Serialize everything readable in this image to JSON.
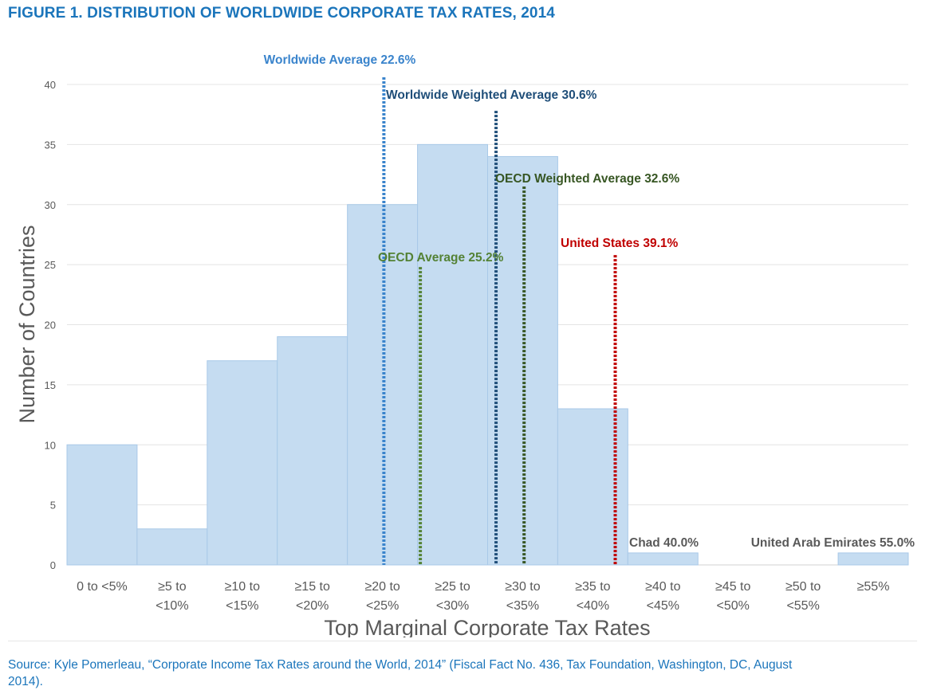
{
  "page": {
    "title": "FIGURE 1. DISTRIBUTION OF WORLDWIDE CORPORATE TAX RATES, 2014",
    "source": "Source: Kyle Pomerleau, “Corporate Income Tax Rates around the World, 2014” (Fiscal Fact No. 436, Tax Foundation, Washington, DC, August 2014)."
  },
  "chart_data": {
    "type": "bar",
    "xlabel": "Top Marginal Corporate Tax Rates",
    "ylabel": "Number of Countries",
    "ylim": [
      0,
      40
    ],
    "yticks": [
      0,
      5,
      10,
      15,
      20,
      25,
      30,
      35,
      40
    ],
    "grid": true,
    "categories": [
      [
        "0 to <5%"
      ],
      [
        "≥5 to",
        "<10%"
      ],
      [
        "≥10 to",
        "<15%"
      ],
      [
        "≥15 to",
        "<20%"
      ],
      [
        "≥20 to",
        "<25%"
      ],
      [
        "≥25 to",
        "<30%"
      ],
      [
        "≥30 to",
        "<35%"
      ],
      [
        "≥35 to",
        "<40%"
      ],
      [
        "≥40 to",
        "<45%"
      ],
      [
        "≥45 to",
        "<50%"
      ],
      [
        "≥50 to",
        "<55%"
      ],
      [
        "≥55%"
      ]
    ],
    "values": [
      10,
      3,
      17,
      19,
      30,
      35,
      34,
      13,
      1,
      0,
      0,
      1
    ],
    "bar_color": "#c5dcf1",
    "bar_edge_color": "#a9c9e8",
    "reference_lines": [
      {
        "label": "Worldwide Average 22.6%",
        "rate": 22.6,
        "top": 40.6,
        "color": "#3a84cc"
      },
      {
        "label": "Worldwide Weighted Average 30.6%",
        "rate": 30.6,
        "top": 37.8,
        "color": "#1f4e79"
      },
      {
        "label": "OECD Weighted Average 32.6%",
        "rate": 32.6,
        "top": 31.5,
        "color": "#375623"
      },
      {
        "label": "OECD Average 25.2%",
        "rate": 25.2,
        "top": 24.8,
        "color": "#548235"
      },
      {
        "label": "United States 39.1%",
        "rate": 39.1,
        "top": 25.8,
        "color": "#c00000"
      }
    ],
    "bar_annotations": [
      {
        "label": "Chad 40.0%",
        "category_index": 8,
        "color": "#595959"
      },
      {
        "label": "United Arab Emirates 55.0%",
        "category_index": 11,
        "color": "#595959"
      }
    ]
  }
}
